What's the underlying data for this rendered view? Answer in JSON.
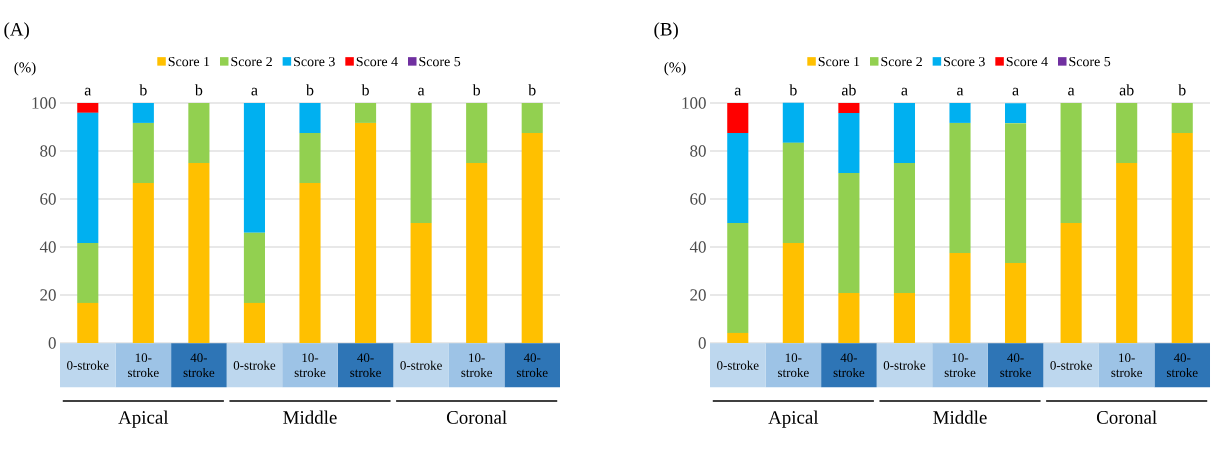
{
  "chart_data": [
    {
      "type": "bar",
      "stacked": true,
      "title": "(A)",
      "ylabel": "(%)",
      "categories": [
        "0-stroke",
        "10-stroke",
        "40-stroke",
        "0-stroke",
        "10-stroke",
        "40-stroke",
        "0-stroke",
        "10-stroke",
        "40-stroke"
      ],
      "series": [
        {
          "name": "Score 1",
          "color": "#ffc000",
          "values": [
            16.7,
            66.7,
            75,
            16.7,
            66.7,
            91.7,
            50,
            75,
            87.5
          ]
        },
        {
          "name": "Score 2",
          "color": "#92d050",
          "values": [
            25,
            25,
            25,
            29.2,
            20.8,
            8.3,
            50,
            25,
            12.5
          ]
        },
        {
          "name": "Score 3",
          "color": "#00b0f0",
          "values": [
            54.2,
            8.3,
            0,
            54.1,
            12.5,
            0,
            0,
            0,
            0
          ]
        },
        {
          "name": "Score 4",
          "color": "#ff0000",
          "values": [
            4.1,
            0,
            0,
            0,
            0,
            0,
            0,
            0,
            0
          ]
        },
        {
          "name": "Score 5",
          "color": "#7030a0",
          "values": [
            0,
            0,
            0,
            0,
            0,
            0,
            0,
            0,
            0
          ]
        }
      ],
      "ylim": [
        0,
        100
      ],
      "yticks": [
        0,
        20,
        40,
        60,
        80,
        100
      ],
      "grid": "y",
      "legend": "top",
      "annotations": [
        "a",
        "b",
        "b",
        "a",
        "b",
        "b",
        "a",
        "b",
        "b",
        "Apical",
        "Middle",
        "Coronal"
      ]
    },
    {
      "type": "bar",
      "stacked": true,
      "title": "(B)",
      "ylabel": "(%)",
      "categories": [
        "0-stroke",
        "10-stroke",
        "40-stroke",
        "0-stroke",
        "10-stroke",
        "40-stroke",
        "0-stroke",
        "10-stroke",
        "40-stroke"
      ],
      "series": [
        {
          "name": "Score 1",
          "color": "#ffc000",
          "values": [
            4.2,
            41.7,
            20.8,
            20.8,
            37.5,
            33.3,
            50,
            75,
            87.5
          ]
        },
        {
          "name": "Score 2",
          "color": "#92d050",
          "values": [
            45.8,
            41.7,
            50,
            54.2,
            54.2,
            58.3,
            50,
            25,
            12.5
          ]
        },
        {
          "name": "Score 3",
          "color": "#00b0f0",
          "values": [
            37.5,
            16.7,
            25,
            25,
            8.3,
            8.3,
            0,
            0,
            0
          ]
        },
        {
          "name": "Score 4",
          "color": "#ff0000",
          "values": [
            12.5,
            0,
            4.2,
            0,
            0,
            0,
            0,
            0,
            0
          ]
        },
        {
          "name": "Score 5",
          "color": "#7030a0",
          "values": [
            0,
            0,
            0,
            0,
            0,
            0,
            0,
            0,
            0
          ]
        }
      ],
      "ylim": [
        0,
        100
      ],
      "yticks": [
        0,
        20,
        40,
        60,
        80,
        100
      ],
      "grid": "y",
      "legend": "top",
      "annotations": [
        "a",
        "b",
        "ab",
        "a",
        "a",
        "a",
        "a",
        "ab",
        "b",
        "Apical",
        "Middle",
        "Coronal"
      ]
    }
  ]
}
